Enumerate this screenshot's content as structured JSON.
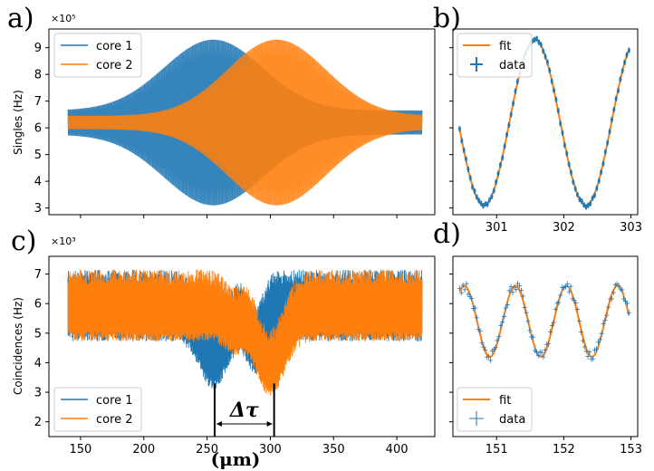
{
  "panel_labels": [
    "a)",
    "b)",
    "c)",
    "d)"
  ],
  "annotation": {
    "delta_tau": "Δτ",
    "x_unit": "(μm)"
  },
  "colors": {
    "core1": "#1f77b4",
    "core2": "#ff7f0e",
    "fit": "#ff7f0e",
    "data": "#1f77b4"
  },
  "chart_data": [
    {
      "id": "a",
      "type": "line",
      "title": "",
      "ylabel": "Singles (Hz)",
      "yscale_label": "×10⁵",
      "xlim": [
        125,
        430
      ],
      "ylim": [
        2.75,
        9.7
      ],
      "xticks": [
        150,
        200,
        250,
        300,
        350,
        400
      ],
      "yticks": [
        3,
        4,
        5,
        6,
        7,
        8,
        9
      ],
      "legend": {
        "position": "top-left",
        "entries": [
          "core 1",
          "core 2"
        ]
      },
      "x_range": [
        140,
        420
      ],
      "series": [
        {
          "name": "core 1",
          "mean": 6.2,
          "envelope_center": 255,
          "envelope_width": 55,
          "envelope_min": 0.45,
          "envelope_max": 3.1
        },
        {
          "name": "core 2",
          "mean": 6.2,
          "envelope_center": 305,
          "envelope_width": 55,
          "envelope_min": 0.25,
          "envelope_max": 3.1
        }
      ]
    },
    {
      "id": "b",
      "type": "scatter",
      "title": "",
      "xlim": [
        300.35,
        303.1
      ],
      "ylim": [
        2.75,
        9.7
      ],
      "xticks": [
        301,
        302,
        303
      ],
      "legend": {
        "position": "top-left",
        "entries": [
          "fit",
          "data"
        ]
      },
      "fit": {
        "mean": 6.2,
        "amplitude": 3.1,
        "period": 1.52,
        "peak_x": 301.57,
        "x_range": [
          300.45,
          302.97
        ]
      },
      "data_points_count": 80
    },
    {
      "id": "c",
      "type": "line",
      "title": "",
      "ylabel": "Coincidences (Hz)",
      "yscale_label": "×10³",
      "xlim": [
        125,
        430
      ],
      "ylim": [
        1.5,
        7.6
      ],
      "xticks": [
        150,
        200,
        250,
        300,
        350,
        400
      ],
      "yticks": [
        2,
        3,
        4,
        5,
        6,
        7
      ],
      "legend": {
        "position": "bottom-left",
        "entries": [
          "core 1",
          "core 2"
        ]
      },
      "x_range": [
        140,
        420
      ],
      "series": [
        {
          "name": "core 1",
          "band_top": 6.9,
          "band_bottom": 4.9,
          "dip_center": 255,
          "dip_width": 15,
          "dip_depth": 1.7,
          "bump_center": 288,
          "bump_width": 9,
          "bump_depth": 1.2
        },
        {
          "name": "core 2",
          "band_top": 6.9,
          "band_bottom": 4.9,
          "dip_center": 300,
          "dip_width": 15,
          "dip_depth": 2.0,
          "bump_center": 270,
          "bump_width": 9,
          "bump_depth": 0.5
        }
      ],
      "markers": {
        "x1": 256,
        "x2": 303
      }
    },
    {
      "id": "d",
      "type": "scatter",
      "title": "",
      "xlim": [
        150.35,
        153.1
      ],
      "ylim": [
        1.5,
        7.6
      ],
      "xticks": [
        151,
        152,
        153
      ],
      "legend": {
        "position": "bottom-left",
        "entries": [
          "fit",
          "data"
        ]
      },
      "fit": {
        "mean": 5.4,
        "amplitude": 1.2,
        "period": 0.76,
        "peak_x": 150.52,
        "x_range": [
          150.45,
          152.97
        ]
      },
      "data_points_count": 100
    }
  ]
}
